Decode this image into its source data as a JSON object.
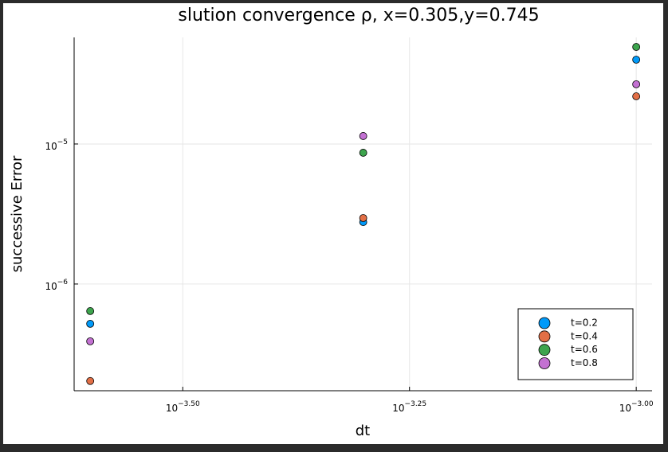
{
  "chart_data": {
    "type": "scatter",
    "title": "slution convergence ρ, x=0.305,y=0.745",
    "x_label": "dt",
    "y_label": "successive Error",
    "x_log": true,
    "y_log": true,
    "grid": true,
    "legend_position": "bottom-right",
    "x": [
      0.00025,
      0.0005,
      0.001
    ],
    "series": [
      {
        "name": "t=0.2",
        "color": "#009af9",
        "values": [
          5.2e-07,
          2.77e-06,
          4e-05
        ]
      },
      {
        "name": "t=0.4",
        "color": "#e26f46",
        "values": [
          2.03e-07,
          2.96e-06,
          2.19e-05
        ]
      },
      {
        "name": "t=0.6",
        "color": "#3da44d",
        "values": [
          6.41e-07,
          8.66e-06,
          4.93e-05
        ]
      },
      {
        "name": "t=0.8",
        "color": "#c371d2",
        "values": [
          3.9e-07,
          1.14e-05,
          2.67e-05
        ]
      }
    ],
    "xlim": [
      0.00024,
      0.001041
    ],
    "ylim": [
      1.73e-07,
      5.77e-05
    ],
    "xticks": [
      {
        "value": 0.000316228,
        "label": "10",
        "exponent": "−3.50"
      },
      {
        "value": 0.000562341,
        "label": "10",
        "exponent": "−3.25"
      },
      {
        "value": 0.001,
        "label": "10",
        "exponent": "−3.00"
      }
    ],
    "yticks": [
      {
        "value": 1e-06,
        "label": "10",
        "exponent": "−6"
      },
      {
        "value": 1e-05,
        "label": "10",
        "exponent": "−5"
      }
    ]
  }
}
